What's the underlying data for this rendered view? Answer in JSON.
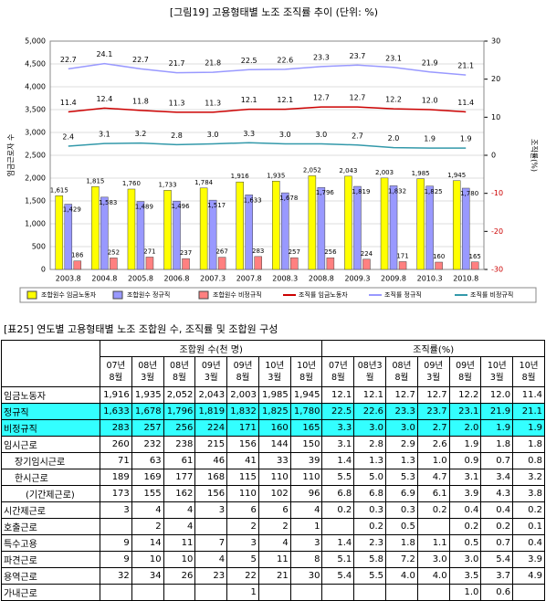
{
  "chart_data": {
    "type": "bar",
    "title": "[그림19] 고용형태별 노조 조직률 추이 (단위: %)",
    "y_label": "임금근로자 수",
    "y2_label": "조직률(%)",
    "categories": [
      "2003.8",
      "2004.8",
      "2005.8",
      "2006.8",
      "2007.3",
      "2007.8",
      "2008.3",
      "2008.8",
      "2009.3",
      "2009.8",
      "2010.3",
      "2010.8"
    ],
    "ylim": [
      0,
      5000
    ],
    "yticks": [
      0,
      {
        "value": 500,
        "label": "500"
      },
      {
        "value": 1000,
        "label": "1,000"
      },
      {
        "value": 1500,
        "label": "1,500"
      },
      {
        "value": 2000,
        "label": "2,000"
      },
      {
        "value": 2500,
        "label": "2,500"
      },
      {
        "value": 3000,
        "label": "3,000"
      },
      {
        "value": 3500,
        "label": "3,500"
      },
      {
        "value": 4000,
        "label": "4,000"
      },
      {
        "value": 4500,
        "label": "4,500"
      },
      {
        "value": 5000,
        "label": "5,000"
      }
    ],
    "y2lim": [
      -30,
      30
    ],
    "y2ticks": [
      -30,
      -20,
      -10,
      0,
      10,
      20,
      30
    ],
    "grid": true,
    "series": [
      {
        "name": "조합원수 임금노동자",
        "kind": "bar",
        "color": "#ffff00",
        "values": [
          1615,
          1815,
          1760,
          1733,
          1784,
          1916,
          1935,
          2052,
          2043,
          2003,
          1985,
          1945
        ],
        "value_labels": [
          "1,615",
          "1,815",
          "1,760",
          "1,733",
          "1,784",
          "1,916",
          "1,935",
          "2,052",
          "2,043",
          "2,003",
          "1,985",
          "1,945"
        ]
      },
      {
        "name": "조합원수 정규직",
        "kind": "bar",
        "color": "#9999ff",
        "values": [
          1429,
          1583,
          1489,
          1496,
          1517,
          1633,
          1678,
          1796,
          1819,
          1832,
          1825,
          1780
        ],
        "value_labels": [
          "1,429",
          "1,583",
          "1,489",
          "1,496",
          "1,517",
          "1,633",
          "1,678",
          "1,796",
          "1,819",
          "1,832",
          "1,825",
          "1,780"
        ]
      },
      {
        "name": "조합원수 비정규직",
        "kind": "bar",
        "color": "#ff8080",
        "values": [
          186,
          252,
          271,
          237,
          267,
          283,
          257,
          256,
          224,
          171,
          160,
          165
        ],
        "value_labels": [
          "186",
          "252",
          "271",
          "237",
          "267",
          "283",
          "257",
          "256",
          "224",
          "171",
          "160",
          "165"
        ]
      },
      {
        "name": "조직률 임금노동자",
        "kind": "line",
        "axis": "y2",
        "color": "#cc0000",
        "values": [
          11.4,
          12.4,
          11.8,
          11.3,
          11.3,
          12.1,
          12.1,
          12.7,
          12.7,
          12.2,
          12.0,
          11.4
        ],
        "value_labels": [
          "11.4",
          "12.4",
          "11.8",
          "11.3",
          "11.3",
          "12.1",
          "12.1",
          "12.7",
          "12.7",
          "12.2",
          "12.0",
          "11.4"
        ]
      },
      {
        "name": "조직률 정규직",
        "kind": "line",
        "axis": "y2",
        "color": "#9999ff",
        "values": [
          22.7,
          24.1,
          22.7,
          21.7,
          21.8,
          22.5,
          22.6,
          23.3,
          23.7,
          23.1,
          21.9,
          21.1
        ],
        "value_labels": [
          "22.7",
          "24.1",
          "22.7",
          "21.7",
          "21.8",
          "22.5",
          "22.6",
          "23.3",
          "23.7",
          "23.1",
          "21.9",
          "21.1"
        ]
      },
      {
        "name": "조직률 비정규직",
        "kind": "line",
        "axis": "y2",
        "color": "#3399aa",
        "values": [
          2.4,
          3.1,
          3.2,
          2.8,
          3.0,
          3.3,
          3.0,
          3.0,
          2.7,
          2.0,
          1.9,
          1.9
        ],
        "value_labels": [
          "2.4",
          "3.1",
          "3.2",
          "2.8",
          "3.0",
          "3.3",
          "3.0",
          "3.0",
          "2.7",
          "2.0",
          "1.9",
          "1.9"
        ]
      }
    ]
  },
  "table": {
    "title": "[표25] 연도별 고용형태별 노조 조합원 수, 조직률 및 조합원 구성",
    "groups": [
      "조합원 수(천 명)",
      "조직률(%)"
    ],
    "columns": [
      "07년\n8월",
      "08년\n3월",
      "08년\n8월",
      "09년\n3월",
      "09년\n8월",
      "10년\n3월",
      "10년\n8월",
      "07년\n8월",
      "08년3\n월",
      "08년\n8월",
      "09년\n3월",
      "09년\n8월",
      "10년\n3월",
      "10년\n8월"
    ],
    "rows": [
      [
        "임금노동자",
        "1,916",
        "1,935",
        "2,052",
        "2,043",
        "2,003",
        "1,985",
        "1,945",
        "12.1",
        "12.1",
        "12.7",
        "12.7",
        "12.2",
        "12.0",
        "11.4"
      ],
      [
        "정규직",
        "1,633",
        "1,678",
        "1,796",
        "1,819",
        "1,832",
        "1,825",
        "1,780",
        "22.5",
        "22.6",
        "23.3",
        "23.7",
        "23.1",
        "21.9",
        "21.1"
      ],
      [
        "비정규직",
        "283",
        "257",
        "256",
        "224",
        "171",
        "160",
        "165",
        "3.3",
        "3.0",
        "3.0",
        "2.7",
        "2.0",
        "1.9",
        "1.9"
      ],
      [
        "임시근로",
        "260",
        "232",
        "238",
        "215",
        "156",
        "144",
        "150",
        "3.1",
        "2.8",
        "2.9",
        "2.6",
        "1.9",
        "1.8",
        "1.8"
      ],
      [
        "장기임시근로",
        "71",
        "63",
        "61",
        "46",
        "41",
        "33",
        "39",
        "1.4",
        "1.3",
        "1.3",
        "1.0",
        "0.9",
        "0.7",
        "0.8"
      ],
      [
        "한시근로",
        "189",
        "169",
        "177",
        "168",
        "115",
        "110",
        "110",
        "5.5",
        "5.0",
        "5.3",
        "4.7",
        "3.1",
        "3.4",
        "3.2"
      ],
      [
        "(기간제근로)",
        "173",
        "155",
        "162",
        "156",
        "110",
        "102",
        "96",
        "6.8",
        "6.8",
        "6.9",
        "6.1",
        "3.9",
        "4.3",
        "3.8"
      ],
      [
        "시간제근로",
        "3",
        "4",
        "4",
        "3",
        "6",
        "6",
        "4",
        "0.2",
        "0.3",
        "0.3",
        "0.2",
        "0.4",
        "0.4",
        "0.2"
      ],
      [
        "호출근로",
        null,
        "2",
        "4",
        null,
        "2",
        "2",
        "1",
        null,
        "0.2",
        "0.5",
        null,
        "0.2",
        "0.2",
        "0.1"
      ],
      [
        "특수고용",
        "9",
        "14",
        "11",
        "7",
        "3",
        "4",
        "3",
        "1.4",
        "2.3",
        "1.8",
        "1.1",
        "0.5",
        "0.7",
        "0.4"
      ],
      [
        "파견근로",
        "9",
        "10",
        "10",
        "4",
        "5",
        "11",
        "8",
        "5.1",
        "5.8",
        "7.2",
        "3.0",
        "3.0",
        "5.4",
        "3.9"
      ],
      [
        "용역근로",
        "32",
        "34",
        "26",
        "23",
        "22",
        "21",
        "30",
        "5.4",
        "5.5",
        "4.0",
        "4.0",
        "3.5",
        "3.7",
        "4.9"
      ],
      [
        "가내근로",
        null,
        null,
        null,
        null,
        "1",
        null,
        null,
        null,
        null,
        null,
        null,
        "1.0",
        "0.6",
        null
      ]
    ]
  }
}
